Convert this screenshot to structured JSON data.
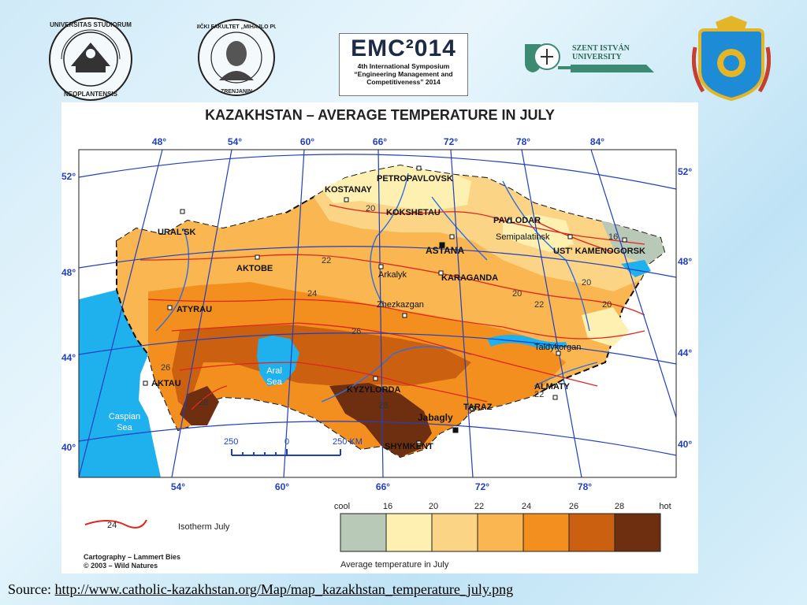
{
  "logos": {
    "emc_title": "EMC²014",
    "emc_line1": "4th International Symposium",
    "emc_line2": "“Engineering Management and",
    "emc_line3": "Competitiveness” 2014",
    "szent_line1": "SZENT ISTVÁN",
    "szent_line2": "UNIVERSITY",
    "novi_sad_text": "UNIVERSITAS STUDIORUM NEOPLANTENSIS",
    "pupin_text": "TEHNIČKI FAKULTET MIHAJLO PUPIN ZRENJANIN"
  },
  "map": {
    "title": "KAZAKHSTAN  –  AVERAGE TEMPERATURE IN JULY",
    "top_longitudes": [
      "48°",
      "54°",
      "60°",
      "66°",
      "72°",
      "78°",
      "84°"
    ],
    "bottom_longitudes": [
      "54°",
      "60°",
      "66°",
      "72°",
      "78°"
    ],
    "left_latitudes": [
      "52°",
      "48°",
      "44°",
      "40°"
    ],
    "right_latitudes": [
      "52°",
      "48°",
      "44°",
      "40°"
    ],
    "cities": {
      "petropavlovsk": "PETROPAVLOVSK",
      "kostanay": "KOSTANAY",
      "kokshetau": "KOKSHETAU",
      "pavlodar": "PAVLODAR",
      "semipalatinsk": "Semipalatinsk",
      "ust_kamenogorsk": "UST' KAMENOGORSK",
      "uralsk": "URAL'SK",
      "aktobe": "AKTOBE",
      "astana": "ASTANA",
      "arkalyk": "Arkalyk",
      "karaganda": "KARAGANDA",
      "atyrau": "ATYRAU",
      "zhezkazgan": "Zhezkazgan",
      "taldykorgan": "Taldykorgan",
      "aktau": "AKTAU",
      "kyzylorda": "KYZYLORDA",
      "almaty": "ALMATY",
      "taraz": "TARAZ",
      "jabagly": "Jabagly",
      "shymkent": "SHYMKENT"
    },
    "water": {
      "caspian": [
        "Caspian",
        "Sea"
      ],
      "aral": [
        "Aral",
        "Sea"
      ]
    },
    "isotherm_labels": [
      "20",
      "22",
      "24",
      "26",
      "26",
      "28",
      "28",
      "22",
      "20",
      "20",
      "22",
      "16",
      "20"
    ],
    "scale": {
      "left": "250",
      "zero": "0",
      "right": "250 KM"
    },
    "legend": {
      "categories": [
        "cool",
        "16",
        "20",
        "22",
        "24",
        "26",
        "28",
        "hot"
      ],
      "colors": [
        "#b8c9b8",
        "#fdf0b0",
        "#fbd486",
        "#f9b651",
        "#f28f1e",
        "#cc6011",
        "#6e2f10"
      ],
      "caption": "Average temperature in July",
      "isotherm_sample": "24",
      "isotherm_label": "Isotherm July"
    },
    "credits": {
      "line1": "Cartography – Lammert Bies",
      "line2": "© 2003 – Wild Natures"
    },
    "colors": {
      "ocean": "#1fb0ee",
      "isotherm": "#e0261c",
      "grid": "#1f3fbf",
      "river": "#2e6fe0"
    }
  },
  "source": {
    "label": "Source: ",
    "url": "http://www.catholic-kazakhstan.org/Map/map_kazakhstan_temperature_july.png"
  }
}
